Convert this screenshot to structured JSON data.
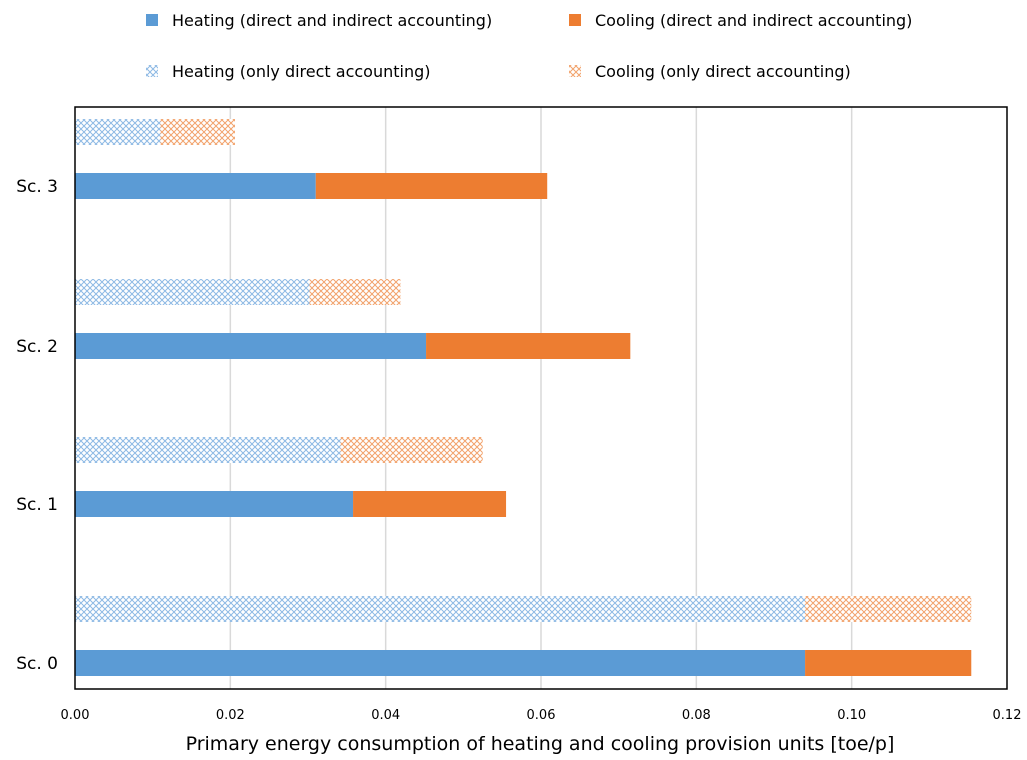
{
  "chart_data": {
    "type": "bar",
    "orientation": "horizontal",
    "stacked": true,
    "categories": [
      "Sc. 0",
      "Sc. 1",
      "Sc. 2",
      "Sc. 3"
    ],
    "groups": [
      {
        "name": "direct and indirect accounting",
        "series": [
          {
            "name": "Heating (direct and indirect accounting)",
            "color": "#5b9bd5",
            "pattern": "solid",
            "values": [
              0.094,
              0.0358,
              0.0452,
              0.031
            ]
          },
          {
            "name": "Cooling (direct and indirect accounting)",
            "color": "#ed7d31",
            "pattern": "solid",
            "values": [
              0.0214,
              0.0197,
              0.0263,
              0.0298
            ]
          }
        ]
      },
      {
        "name": "only direct accounting",
        "series": [
          {
            "name": "Heating (only direct accounting)",
            "color": "#5b9bd5",
            "pattern": "crosshatch",
            "values": [
              0.094,
              0.0342,
              0.0302,
              0.011
            ]
          },
          {
            "name": "Cooling (only direct accounting)",
            "color": "#ed7d31",
            "pattern": "crosshatch",
            "values": [
              0.0214,
              0.0183,
              0.0117,
              0.0096
            ]
          }
        ]
      }
    ],
    "xlabel": "Primary energy consumption of heating and cooling provision units  [toe/p]",
    "ylabel": "",
    "xlim": [
      0,
      0.12
    ],
    "xticks": [
      "0.00",
      "0.02",
      "0.04",
      "0.06",
      "0.08",
      "0.10",
      "0.12"
    ],
    "grid": "vertical",
    "legend_position": "top"
  }
}
